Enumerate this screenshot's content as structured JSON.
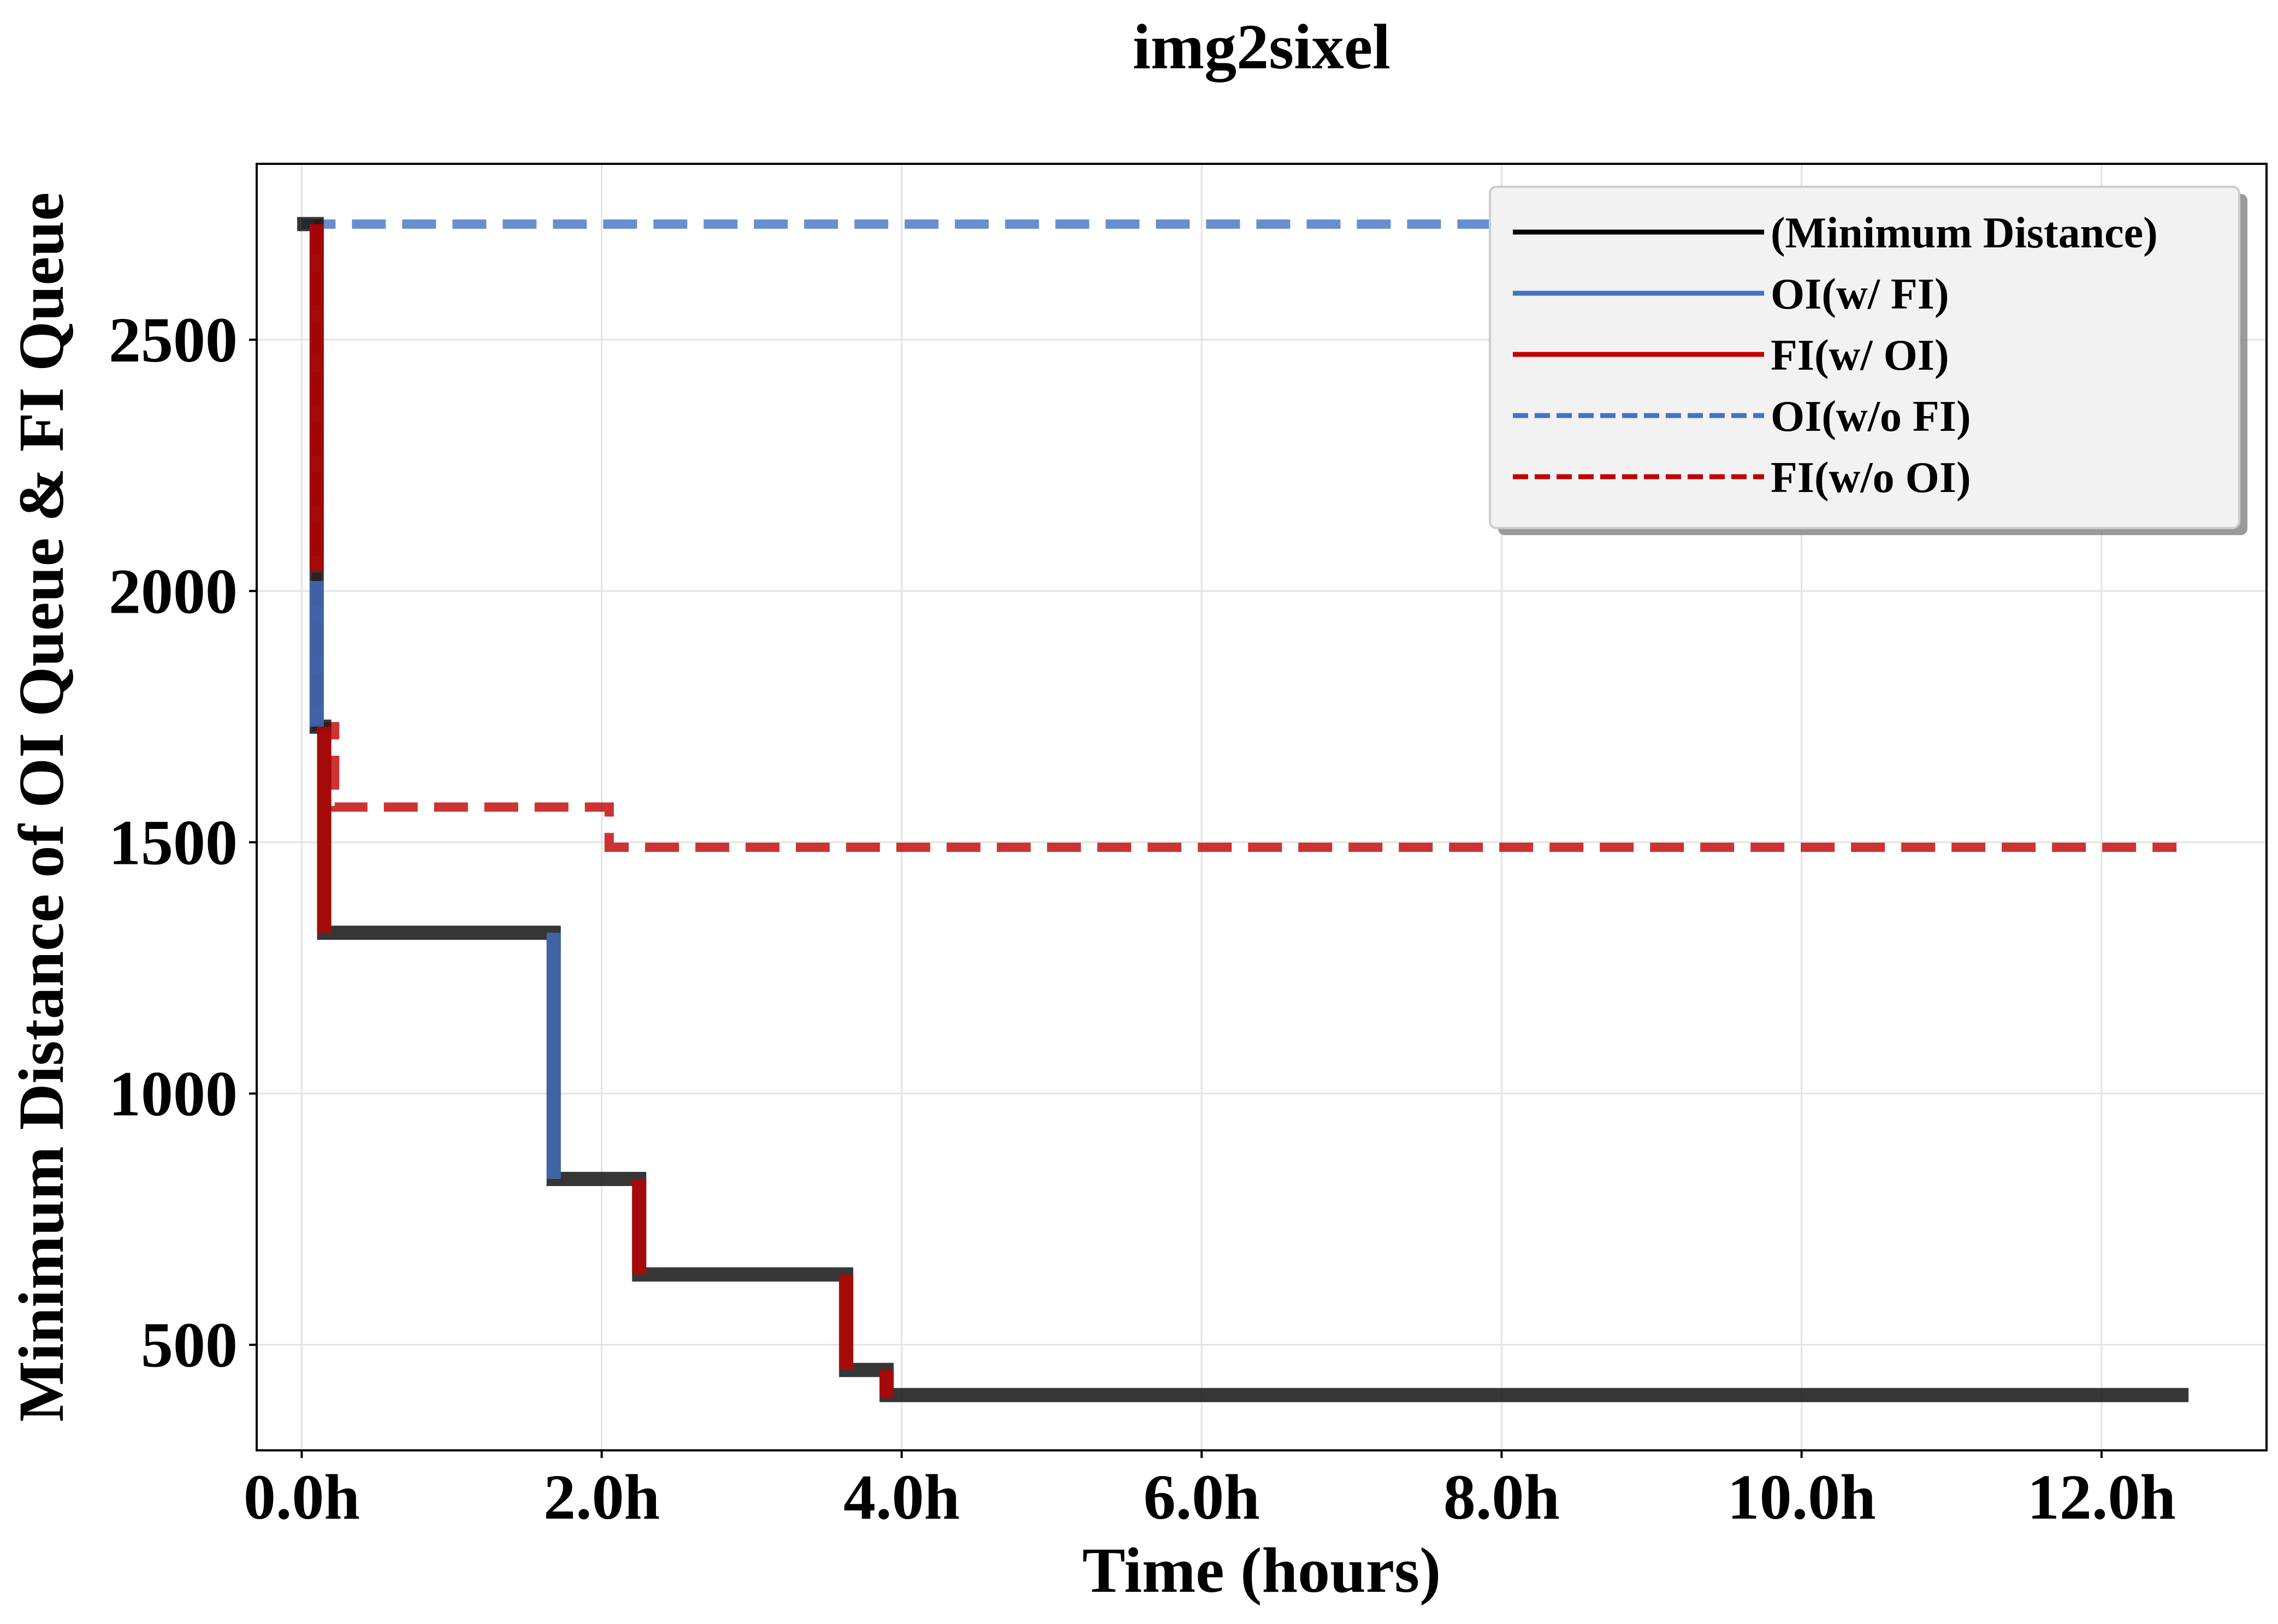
{
  "chart_data": {
    "type": "line",
    "title": "img2sixel",
    "xlabel": "Time (hours)",
    "ylabel": "Minimum Distance of OI Queue & FI Queue",
    "xlim": [
      -0.3,
      13.1
    ],
    "ylim": [
      290,
      2850
    ],
    "x_ticks": [
      0,
      2,
      4,
      6,
      8,
      10,
      12
    ],
    "x_tick_labels": [
      "0.0h",
      "2.0h",
      "4.0h",
      "6.0h",
      "8.0h",
      "10.0h",
      "12.0h"
    ],
    "y_ticks": [
      500,
      1000,
      1500,
      2000,
      2500
    ],
    "y_tick_labels": [
      "500",
      "1000",
      "1500",
      "2000",
      "2500"
    ],
    "grid": true,
    "legend_position": "top-right",
    "colors": {
      "min_distance": "#1a1a1a",
      "oi": "#4472c4",
      "fi": "#c00000",
      "oi_wo": "#4472c4",
      "fi_wo": "#c00000"
    },
    "legend": [
      {
        "label": "(Minimum Distance)",
        "color": "#000000",
        "dash": false
      },
      {
        "label": "OI(w/ FI)",
        "color": "#4472c4",
        "dash": false
      },
      {
        "label": "FI(w/ OI)",
        "color": "#c00000",
        "dash": false
      },
      {
        "label": "OI(w/o FI)",
        "color": "#4472c4",
        "dash": true
      },
      {
        "label": "FI(w/o OI)",
        "color": "#c00000",
        "dash": true
      }
    ],
    "series": [
      {
        "name": "OI(w/o FI)",
        "style": "dashed",
        "points": [
          [
            0.0,
            2730
          ],
          [
            12.5,
            2730
          ]
        ]
      },
      {
        "name": "FI(w/o OI)",
        "style": "dashed",
        "points": [
          [
            0.08,
            2730
          ],
          [
            0.1,
            2730
          ],
          [
            0.1,
            1730
          ],
          [
            0.22,
            1730
          ],
          [
            0.22,
            1570
          ],
          [
            2.05,
            1570
          ],
          [
            2.05,
            1490
          ],
          [
            12.5,
            1490
          ]
        ]
      },
      {
        "name": "(Minimum Distance)",
        "style": "solid",
        "points": [
          [
            -0.03,
            2730
          ],
          [
            0.1,
            2730
          ],
          [
            0.1,
            1730
          ],
          [
            0.15,
            1730
          ],
          [
            0.15,
            1320
          ],
          [
            1.68,
            1320
          ],
          [
            1.68,
            830
          ],
          [
            2.25,
            830
          ],
          [
            2.25,
            640
          ],
          [
            3.63,
            640
          ],
          [
            3.63,
            450
          ],
          [
            3.9,
            450
          ],
          [
            3.9,
            400
          ],
          [
            12.58,
            400
          ]
        ]
      },
      {
        "name": "OI(w/ FI)",
        "style": "solid",
        "segments": [
          [
            [
              0.1,
              2020
            ],
            [
              0.1,
              1730
            ]
          ],
          [
            [
              1.68,
              1320
            ],
            [
              1.68,
              830
            ]
          ]
        ]
      },
      {
        "name": "FI(w/ OI)",
        "style": "solid",
        "segments": [
          [
            [
              0.1,
              2730
            ],
            [
              0.1,
              2040
            ]
          ],
          [
            [
              0.15,
              1730
            ],
            [
              0.15,
              1320
            ]
          ],
          [
            [
              2.25,
              830
            ],
            [
              2.25,
              640
            ]
          ],
          [
            [
              3.63,
              640
            ],
            [
              3.63,
              450
            ]
          ],
          [
            [
              3.9,
              450
            ],
            [
              3.9,
              395
            ]
          ]
        ]
      }
    ]
  }
}
